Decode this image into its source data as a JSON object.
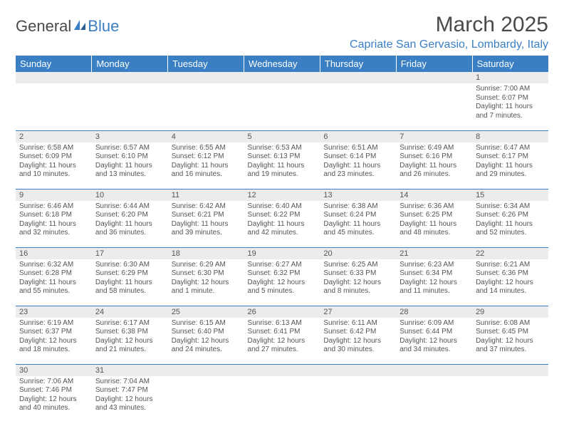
{
  "brand": {
    "part1": "General",
    "part2": "Blue"
  },
  "title": "March 2025",
  "location": "Capriate San Gervasio, Lombardy, Italy",
  "colors": {
    "accent": "#3a7fc4",
    "header_bg": "#3a7fc4",
    "header_text": "#ffffff",
    "daynum_bg": "#ececec",
    "row_border": "#3a7fc4",
    "body_text": "#555555",
    "background": "#ffffff"
  },
  "typography": {
    "title_fontsize": 30,
    "location_fontsize": 16,
    "dayheader_fontsize": 13,
    "daynum_fontsize": 11,
    "cell_fontsize": 10,
    "logo_fontsize": 22
  },
  "day_headers": [
    "Sunday",
    "Monday",
    "Tuesday",
    "Wednesday",
    "Thursday",
    "Friday",
    "Saturday"
  ],
  "weeks": [
    [
      null,
      null,
      null,
      null,
      null,
      null,
      {
        "n": "1",
        "sunrise": "7:00 AM",
        "sunset": "6:07 PM",
        "daylight": "11 hours and 7 minutes."
      }
    ],
    [
      {
        "n": "2",
        "sunrise": "6:58 AM",
        "sunset": "6:09 PM",
        "daylight": "11 hours and 10 minutes."
      },
      {
        "n": "3",
        "sunrise": "6:57 AM",
        "sunset": "6:10 PM",
        "daylight": "11 hours and 13 minutes."
      },
      {
        "n": "4",
        "sunrise": "6:55 AM",
        "sunset": "6:12 PM",
        "daylight": "11 hours and 16 minutes."
      },
      {
        "n": "5",
        "sunrise": "6:53 AM",
        "sunset": "6:13 PM",
        "daylight": "11 hours and 19 minutes."
      },
      {
        "n": "6",
        "sunrise": "6:51 AM",
        "sunset": "6:14 PM",
        "daylight": "11 hours and 23 minutes."
      },
      {
        "n": "7",
        "sunrise": "6:49 AM",
        "sunset": "6:16 PM",
        "daylight": "11 hours and 26 minutes."
      },
      {
        "n": "8",
        "sunrise": "6:47 AM",
        "sunset": "6:17 PM",
        "daylight": "11 hours and 29 minutes."
      }
    ],
    [
      {
        "n": "9",
        "sunrise": "6:46 AM",
        "sunset": "6:18 PM",
        "daylight": "11 hours and 32 minutes."
      },
      {
        "n": "10",
        "sunrise": "6:44 AM",
        "sunset": "6:20 PM",
        "daylight": "11 hours and 36 minutes."
      },
      {
        "n": "11",
        "sunrise": "6:42 AM",
        "sunset": "6:21 PM",
        "daylight": "11 hours and 39 minutes."
      },
      {
        "n": "12",
        "sunrise": "6:40 AM",
        "sunset": "6:22 PM",
        "daylight": "11 hours and 42 minutes."
      },
      {
        "n": "13",
        "sunrise": "6:38 AM",
        "sunset": "6:24 PM",
        "daylight": "11 hours and 45 minutes."
      },
      {
        "n": "14",
        "sunrise": "6:36 AM",
        "sunset": "6:25 PM",
        "daylight": "11 hours and 48 minutes."
      },
      {
        "n": "15",
        "sunrise": "6:34 AM",
        "sunset": "6:26 PM",
        "daylight": "11 hours and 52 minutes."
      }
    ],
    [
      {
        "n": "16",
        "sunrise": "6:32 AM",
        "sunset": "6:28 PM",
        "daylight": "11 hours and 55 minutes."
      },
      {
        "n": "17",
        "sunrise": "6:30 AM",
        "sunset": "6:29 PM",
        "daylight": "11 hours and 58 minutes."
      },
      {
        "n": "18",
        "sunrise": "6:29 AM",
        "sunset": "6:30 PM",
        "daylight": "12 hours and 1 minute."
      },
      {
        "n": "19",
        "sunrise": "6:27 AM",
        "sunset": "6:32 PM",
        "daylight": "12 hours and 5 minutes."
      },
      {
        "n": "20",
        "sunrise": "6:25 AM",
        "sunset": "6:33 PM",
        "daylight": "12 hours and 8 minutes."
      },
      {
        "n": "21",
        "sunrise": "6:23 AM",
        "sunset": "6:34 PM",
        "daylight": "12 hours and 11 minutes."
      },
      {
        "n": "22",
        "sunrise": "6:21 AM",
        "sunset": "6:36 PM",
        "daylight": "12 hours and 14 minutes."
      }
    ],
    [
      {
        "n": "23",
        "sunrise": "6:19 AM",
        "sunset": "6:37 PM",
        "daylight": "12 hours and 18 minutes."
      },
      {
        "n": "24",
        "sunrise": "6:17 AM",
        "sunset": "6:38 PM",
        "daylight": "12 hours and 21 minutes."
      },
      {
        "n": "25",
        "sunrise": "6:15 AM",
        "sunset": "6:40 PM",
        "daylight": "12 hours and 24 minutes."
      },
      {
        "n": "26",
        "sunrise": "6:13 AM",
        "sunset": "6:41 PM",
        "daylight": "12 hours and 27 minutes."
      },
      {
        "n": "27",
        "sunrise": "6:11 AM",
        "sunset": "6:42 PM",
        "daylight": "12 hours and 30 minutes."
      },
      {
        "n": "28",
        "sunrise": "6:09 AM",
        "sunset": "6:44 PM",
        "daylight": "12 hours and 34 minutes."
      },
      {
        "n": "29",
        "sunrise": "6:08 AM",
        "sunset": "6:45 PM",
        "daylight": "12 hours and 37 minutes."
      }
    ],
    [
      {
        "n": "30",
        "sunrise": "7:06 AM",
        "sunset": "7:46 PM",
        "daylight": "12 hours and 40 minutes."
      },
      {
        "n": "31",
        "sunrise": "7:04 AM",
        "sunset": "7:47 PM",
        "daylight": "12 hours and 43 minutes."
      },
      null,
      null,
      null,
      null,
      null
    ]
  ],
  "labels": {
    "sunrise": "Sunrise:",
    "sunset": "Sunset:",
    "daylight": "Daylight:"
  }
}
